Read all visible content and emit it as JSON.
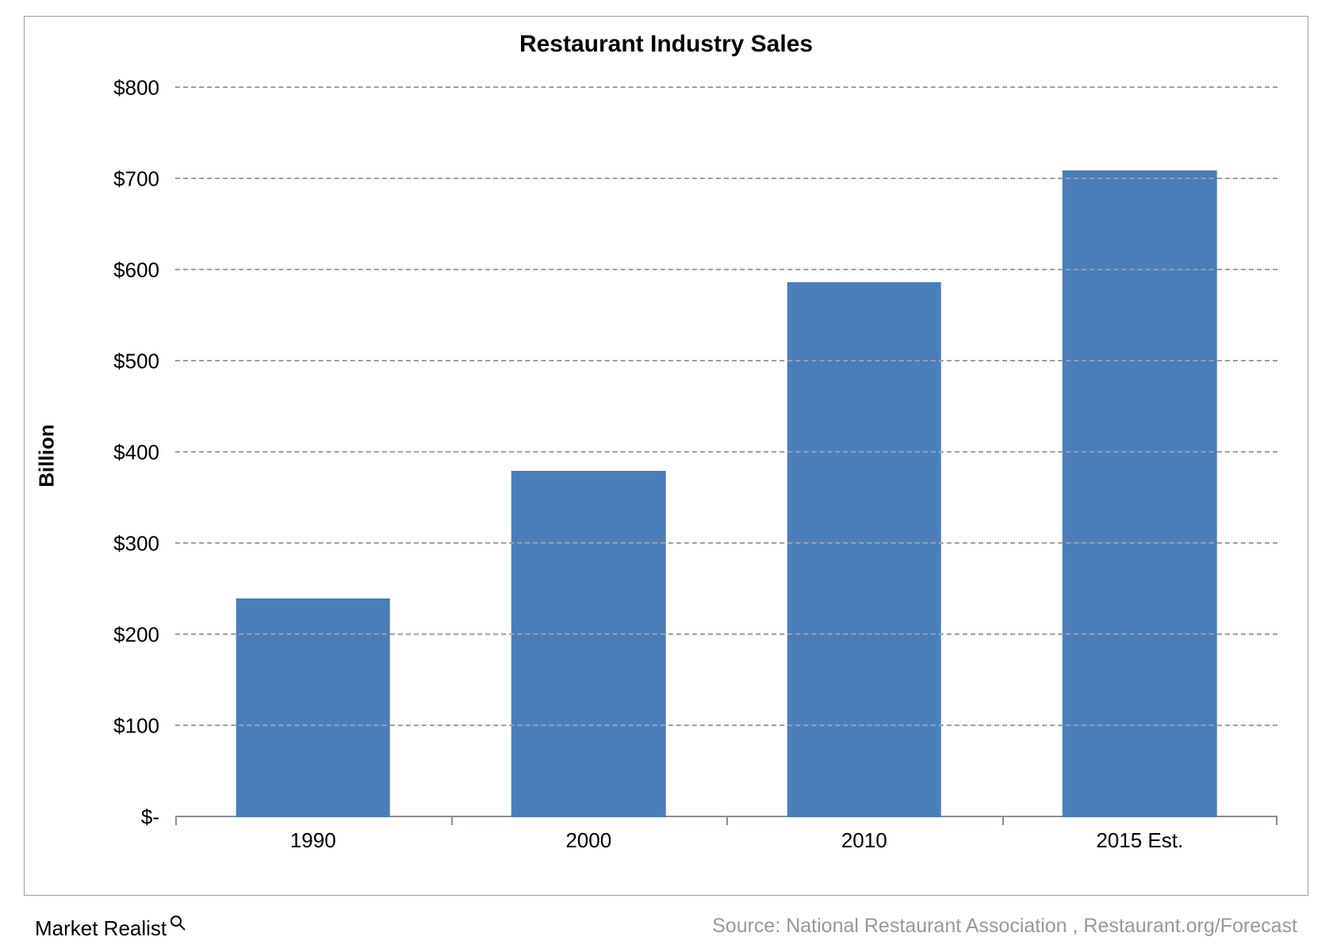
{
  "chart": {
    "type": "bar",
    "title": "Restaurant Industry Sales",
    "title_fontsize": 30,
    "title_fontweight": "bold",
    "background_color": "#ffffff",
    "border_color": "#9aa0a8",
    "y_axis": {
      "label": "Billion",
      "label_fontsize": 26,
      "label_fontweight": "bold",
      "min": 0,
      "max": 800,
      "tick_step": 100,
      "tick_labels": [
        "$-",
        "$100",
        "$200",
        "$300",
        "$400",
        "$500",
        "$600",
        "$700",
        "$800"
      ],
      "tick_fontsize": 26,
      "grid_color": "#9aa0a8",
      "grid_dash": "6 6",
      "axis_line_color": "#8a8f97"
    },
    "x_axis": {
      "categories": [
        "1990",
        "2000",
        "2010",
        "2015 Est."
      ],
      "tick_fontsize": 26,
      "axis_line_color": "#8a8f97"
    },
    "series": {
      "values": [
        240,
        380,
        587,
        710
      ],
      "bar_color": "#4a7ebb",
      "bar_width_fraction": 0.56
    }
  },
  "footer": {
    "brand_text": "Market Realist",
    "brand_fontsize": 26,
    "brand_icon": "magnifier-icon",
    "source_text": "Source: National Restaurant Association , Restaurant.org/Forecast",
    "source_fontsize": 25,
    "source_color": "#97999c"
  }
}
